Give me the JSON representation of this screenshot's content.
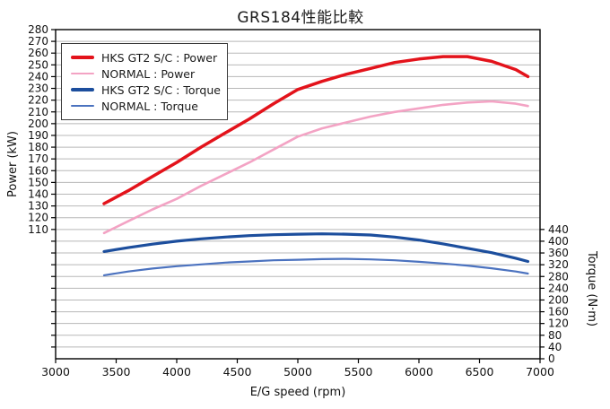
{
  "chart_data": {
    "type": "line",
    "title": "GRS184性能比較",
    "x_axis": {
      "title": "E/G speed (rpm)",
      "min": 3000,
      "max": 7000,
      "tick_step": 500
    },
    "left_axis": {
      "title": "Power (kW)",
      "min": 0,
      "max": 280,
      "grid_step": 10,
      "tick_min": 10,
      "tick_max": 280,
      "label_min": 110,
      "label_max": 280,
      "label_step": 10
    },
    "right_axis": {
      "title": "Torque (N·m)",
      "min": 0,
      "max": 1120,
      "label_min": 0,
      "label_max": 440,
      "label_step": 40
    },
    "grid": "horizontal-only",
    "legend_position": "top-left-inside",
    "x": [
      3400,
      3600,
      3800,
      4000,
      4200,
      4400,
      4600,
      4800,
      5000,
      5200,
      5400,
      5600,
      5800,
      6000,
      6200,
      6400,
      6600,
      6800,
      6900
    ],
    "series": [
      {
        "name": "HKS GT2 S/C : Power",
        "axis": "power",
        "color": "#e3131b",
        "width": 3.5,
        "values": [
          132,
          143,
          155,
          167,
          180,
          192,
          204,
          217,
          229,
          236,
          242,
          247,
          252,
          255,
          257,
          257,
          253,
          246,
          240
        ]
      },
      {
        "name": "NORMAL : Power",
        "axis": "power",
        "color": "#f3a3c4",
        "width": 2.6,
        "values": [
          107,
          117,
          127,
          136,
          147,
          157,
          167,
          178,
          189,
          196,
          201,
          206,
          210,
          213,
          216,
          218,
          219,
          217,
          215
        ]
      },
      {
        "name": "HKS GT2 S/C : Torque",
        "axis": "torque",
        "color": "#1c4e9d",
        "width": 3.2,
        "values": [
          365,
          378,
          390,
          400,
          408,
          414,
          419,
          422,
          424,
          425,
          424,
          421,
          414,
          404,
          391,
          376,
          361,
          342,
          331
        ]
      },
      {
        "name": "NORMAL : Torque",
        "axis": "torque",
        "color": "#4b72bf",
        "width": 2.2,
        "values": [
          284,
          297,
          307,
          315,
          321,
          327,
          331,
          335,
          337,
          339,
          340,
          338,
          335,
          330,
          324,
          317,
          308,
          297,
          290
        ]
      }
    ],
    "colors": {
      "gridline": "#b8b8b8",
      "frame": "#000000",
      "background": "#ffffff"
    }
  }
}
